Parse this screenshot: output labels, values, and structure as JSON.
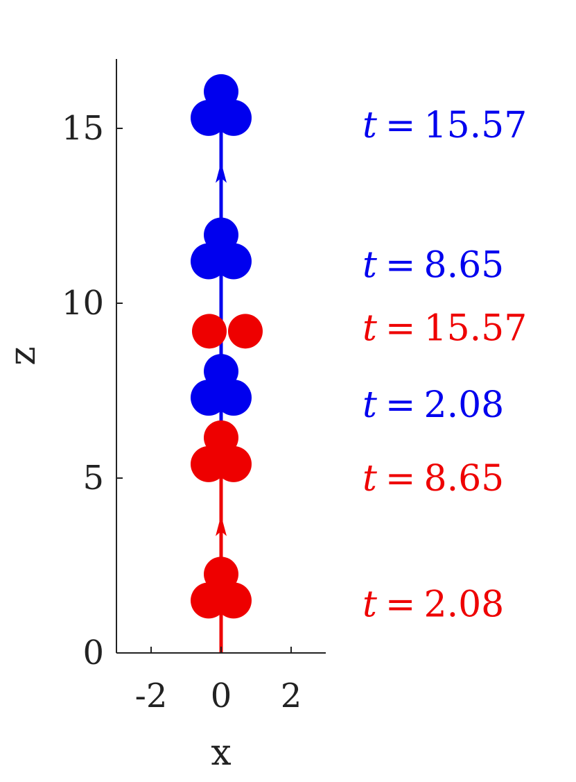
{
  "chart_data": {
    "type": "scatter",
    "xlabel": "x",
    "ylabel": "z",
    "xlim": [
      -3,
      3
    ],
    "ylim": [
      0,
      17
    ],
    "xticks": [
      -2,
      0,
      2
    ],
    "xtick_labels": [
      "-2",
      "0",
      "2"
    ],
    "yticks": [
      0,
      5,
      10,
      15
    ],
    "ytick_labels": [
      "0",
      "5",
      "10",
      "15"
    ],
    "grid": false,
    "series": [
      {
        "color": "#ee0000",
        "trajectory": {
          "x": [
            0,
            0
          ],
          "z": [
            0,
            9.9
          ],
          "arrow_at_z": 3.5
        },
        "snapshots": [
          {
            "t": 2.08,
            "label": "t = 2.08",
            "x": 0,
            "z": 1.5,
            "shape": "three-sphere"
          },
          {
            "t": 8.65,
            "label": "t = 8.65",
            "x": 0,
            "z": 5.4,
            "shape": "three-sphere"
          },
          {
            "t": 15.57,
            "label": "t = 15.57",
            "x": 0,
            "z": 9.2,
            "shape": "two-sphere"
          }
        ]
      },
      {
        "color": "#0000ee",
        "trajectory": {
          "x": [
            0,
            0
          ],
          "z": [
            6,
            15.8
          ],
          "arrow_at_z": 13.6
        },
        "snapshots": [
          {
            "t": 2.08,
            "label": "t = 2.08",
            "x": 0,
            "z": 7.3,
            "shape": "three-sphere"
          },
          {
            "t": 8.65,
            "label": "t = 8.65",
            "x": 0,
            "z": 11.2,
            "shape": "three-sphere"
          },
          {
            "t": 15.57,
            "label": "t = 15.57",
            "x": 0,
            "z": 15.3,
            "shape": "three-sphere"
          }
        ]
      }
    ],
    "annotations": [
      {
        "text": "t = 15.57",
        "color": "#0000ee",
        "z": 15.1
      },
      {
        "text": "t = 8.65",
        "color": "#0000ee",
        "z": 11.1
      },
      {
        "text": "t = 15.57",
        "color": "#ee0000",
        "z": 9.3
      },
      {
        "text": "t = 2.08",
        "color": "#0000ee",
        "z": 7.1
      },
      {
        "text": "t = 8.65",
        "color": "#ee0000",
        "z": 5.0
      },
      {
        "text": "t = 2.08",
        "color": "#ee0000",
        "z": 1.4
      }
    ]
  }
}
